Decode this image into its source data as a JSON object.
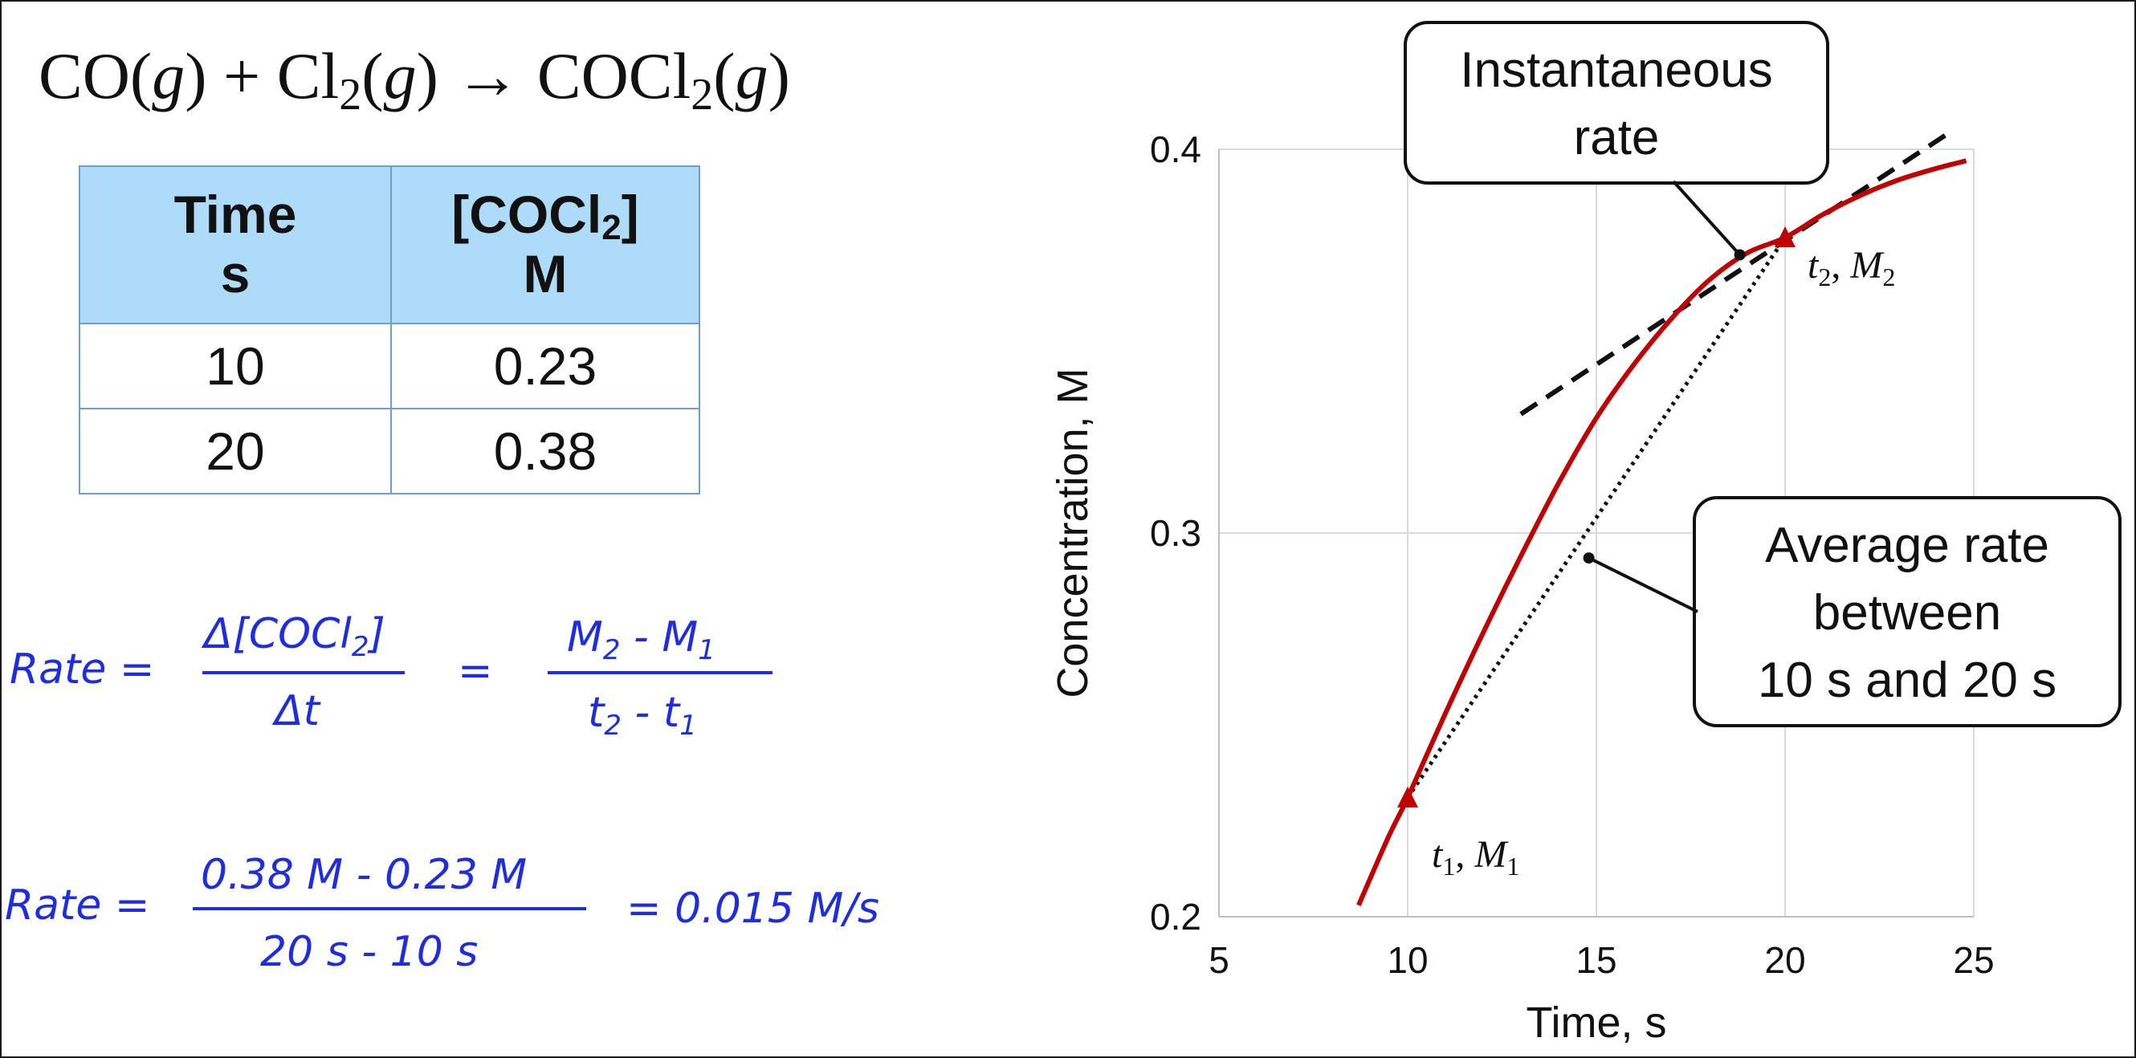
{
  "equation": {
    "co": "CO(",
    "g1": "g",
    "plus_cl": ") + Cl",
    "sub1": "2",
    "open2": "(",
    "g2": "g",
    "arrow_cocl": ") → COCl",
    "sub2": "2",
    "open3": "(",
    "g3": "g",
    "close3": ")"
  },
  "table": {
    "header_time_line1": "Time",
    "header_time_line2": "s",
    "header_conc_pre": "[COCl",
    "header_conc_sub": "2",
    "header_conc_post": "]",
    "header_conc_line2": "M",
    "rows": [
      {
        "time": "10",
        "conc": "0.23"
      },
      {
        "time": "20",
        "conc": "0.38"
      }
    ]
  },
  "formula1": {
    "lhs": "Rate  =",
    "num1_pre": "Δ[COCl",
    "num1_sub": "2",
    "num1_post": "]",
    "den1": "Δt",
    "eq": "=",
    "num2_a": "M",
    "num2_a_sub": "2",
    "num2_mid": "  -  M",
    "num2_b_sub": "1",
    "den2_a": "t",
    "den2_a_sub": "2",
    "den2_mid": "  -  t",
    "den2_b_sub": "1"
  },
  "formula2": {
    "lhs": "Rate  =",
    "num": "0.38 M  -  0.23 M",
    "den": "20 s  -  10 s",
    "result": "=  0.015  M/s"
  },
  "chart_data": {
    "type": "line",
    "xlabel": "Time, s",
    "ylabel": "Concentration, M",
    "xlim": [
      5,
      25
    ],
    "ylim": [
      0.2,
      0.4
    ],
    "xticks": [
      "5",
      "10",
      "15",
      "20",
      "25"
    ],
    "yticks": [
      "0.2",
      "0.3",
      "0.4"
    ],
    "grid": true,
    "curve": {
      "color": "#c00000",
      "x": [
        8.7,
        9.5,
        10,
        11,
        12,
        13,
        14,
        15,
        16,
        17,
        18,
        19,
        20,
        21,
        22,
        23,
        24,
        24.8
      ],
      "y": [
        0.203,
        0.221,
        0.231,
        0.253,
        0.274,
        0.294,
        0.313,
        0.33,
        0.344,
        0.356,
        0.366,
        0.373,
        0.377,
        0.383,
        0.388,
        0.392,
        0.395,
        0.397
      ]
    },
    "points": [
      {
        "x": 10,
        "y": 0.231,
        "label_var": "t",
        "label_var_sub": "1",
        "label_sep": ", ",
        "label_var2": "M",
        "label_var2_sub": "1"
      },
      {
        "x": 20,
        "y": 0.377,
        "label_var": "t",
        "label_var_sub": "2",
        "label_sep": ", ",
        "label_var2": "M",
        "label_var2_sub": "2"
      }
    ],
    "tangent_line": {
      "style": "dashed",
      "x": [
        13,
        24.3
      ],
      "y": [
        0.331,
        0.404
      ]
    },
    "secant_line": {
      "style": "dotted",
      "x": [
        10,
        20
      ],
      "y": [
        0.231,
        0.377
      ]
    },
    "callouts": [
      {
        "name": "instantaneous",
        "lines": [
          "Instantaneous",
          "rate"
        ],
        "target_x": 18.8,
        "target_y": 0.3725
      },
      {
        "name": "average",
        "lines": [
          "Average rate",
          "between",
          "10 s and 20 s"
        ],
        "target_x": 14.8,
        "target_y": 0.2935
      }
    ]
  }
}
